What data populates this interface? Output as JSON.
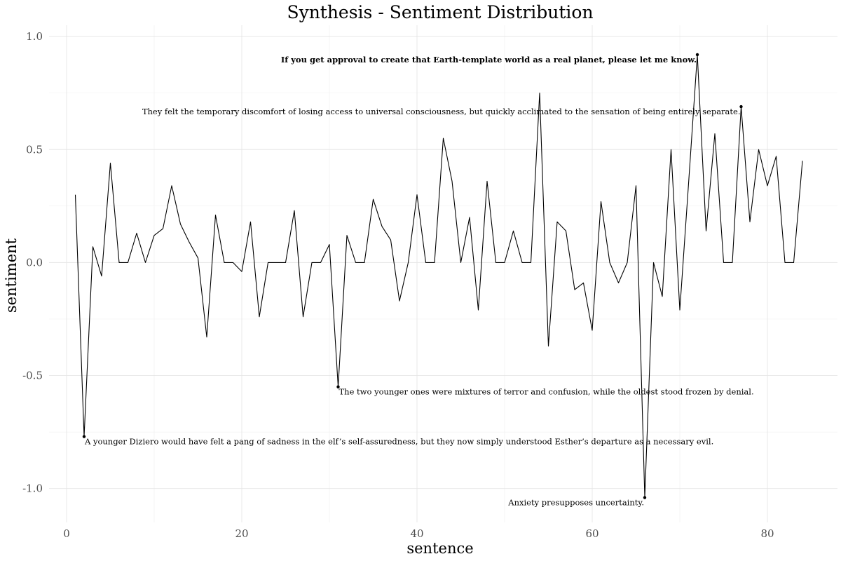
{
  "chart_data": {
    "type": "line",
    "title": "Synthesis - Sentiment Distribution",
    "xlabel": "sentence",
    "ylabel": "sentiment",
    "xlim": [
      -2,
      88
    ],
    "ylim": [
      -1.15,
      1.05
    ],
    "x_ticks": [
      0,
      20,
      40,
      60,
      80
    ],
    "x_tick_labels": [
      "0",
      "20",
      "40",
      "60",
      "80"
    ],
    "y_ticks": [
      1.0,
      0.5,
      0.0,
      -0.5,
      -1.0
    ],
    "y_tick_labels": [
      "1.0",
      "0.5",
      "0.0",
      "-0.5",
      "-1.0"
    ],
    "grid": true,
    "series": [
      {
        "values": [
          0.3,
          -0.77,
          0.07,
          -0.06,
          0.44,
          0.0,
          0.0,
          0.13,
          0.0,
          0.12,
          0.15,
          0.34,
          0.17,
          0.09,
          0.02,
          -0.33,
          0.21,
          0.0,
          0.0,
          -0.04,
          0.18,
          -0.24,
          0.0,
          0.0,
          0.0,
          0.23,
          -0.24,
          0.0,
          0.0,
          0.08,
          -0.55,
          0.12,
          0.0,
          0.0,
          0.28,
          0.16,
          0.1,
          -0.17,
          0.0,
          0.3,
          0.0,
          0.0,
          0.55,
          0.36,
          0.0,
          0.2,
          -0.21,
          0.36,
          0.0,
          0.0,
          0.14,
          0.0,
          0.0,
          0.75,
          -0.37,
          0.18,
          0.14,
          -0.12,
          -0.09,
          -0.3,
          0.27,
          0.0,
          -0.09,
          0.0,
          0.34,
          -1.04,
          0.0,
          -0.15,
          0.5,
          -0.21,
          0.35,
          0.92,
          0.14,
          0.57,
          0.0,
          0.0,
          0.69,
          0.18,
          0.5,
          0.34,
          0.47,
          0.0,
          0.0,
          0.45
        ]
      }
    ],
    "annotations": [
      {
        "x": 72,
        "y": 0.92,
        "anchor": "end",
        "bold": true,
        "text": "If you get approval to create that Earth-template world as a real planet, please let me know."
      },
      {
        "x": 77,
        "y": 0.69,
        "anchor": "end",
        "bold": false,
        "text": "They felt the temporary discomfort of losing access to universal consciousness, but quickly acclimated to the sensation of being entirely separate."
      },
      {
        "x": 31,
        "y": -0.55,
        "anchor": "start",
        "bold": false,
        "text": "The two younger ones were mixtures of terror and confusion, while the oldest stood frozen by denial."
      },
      {
        "x": 2,
        "y": -0.77,
        "anchor": "start",
        "bold": false,
        "text": "A younger Diziero would have felt a pang of sadness in the elf’s self-assuredness, but they now simply understood Esther’s departure as a necessary evil."
      },
      {
        "x": 66,
        "y": -1.04,
        "anchor": "end",
        "bold": false,
        "text": "Anxiety presupposes uncertainty."
      }
    ],
    "line_color": "#000000"
  }
}
